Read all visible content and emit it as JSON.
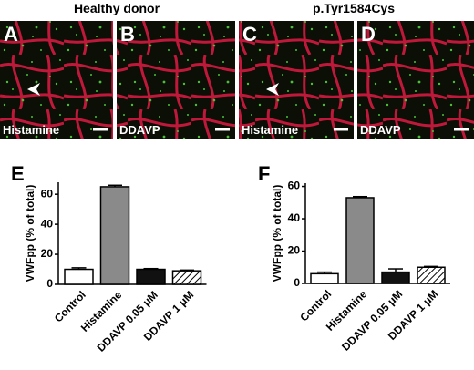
{
  "groups": [
    "Healthy donor",
    "p.Tyr1584Cys"
  ],
  "images": [
    {
      "letter": "A",
      "label": "Histamine"
    },
    {
      "letter": "B",
      "label": "DDAVP"
    },
    {
      "letter": "C",
      "label": "Histamine"
    },
    {
      "letter": "D",
      "label": "DDAVP"
    }
  ],
  "chart_data": [
    {
      "type": "bar",
      "panel": "E",
      "ylabel": "VWFpp (% of total)",
      "categories": [
        "Control",
        "Histamine",
        "DDAVP 0.05 μM",
        "DDAVP 1 μM"
      ],
      "values": [
        10,
        65,
        10,
        9
      ],
      "errors": [
        1,
        1,
        0.5,
        0.5
      ],
      "colors": [
        "#ffffff",
        "#8a8a8a",
        "#111111",
        "#ffffff"
      ],
      "hatched": [
        false,
        false,
        false,
        true
      ],
      "ylim": [
        0,
        68
      ],
      "yticks": [
        0,
        20,
        40,
        60
      ]
    },
    {
      "type": "bar",
      "panel": "F",
      "ylabel": "VWFpp (% of total)",
      "categories": [
        "Control",
        "Histamine",
        "DDAVP 0.05 μM",
        "DDAVP 1 μM"
      ],
      "values": [
        6,
        53,
        7,
        10
      ],
      "errors": [
        1,
        0.7,
        2,
        0.5
      ],
      "colors": [
        "#ffffff",
        "#8a8a8a",
        "#111111",
        "#ffffff"
      ],
      "hatched": [
        false,
        false,
        false,
        true
      ],
      "ylim": [
        0,
        62
      ],
      "yticks": [
        0,
        20,
        40,
        60
      ]
    }
  ]
}
